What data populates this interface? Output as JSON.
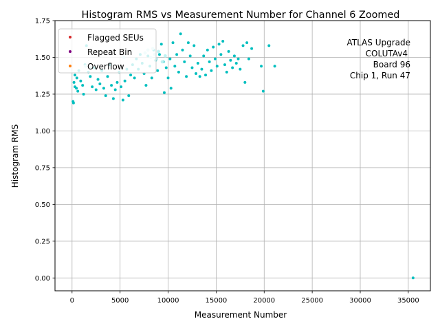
{
  "chart_data": {
    "type": "scatter",
    "title": "Histogram RMS vs Measurement Number for Channel 6 Zoomed",
    "xlabel": "Measurement Number",
    "ylabel": "Histogram RMS",
    "xlim": [
      -1775,
      37300
    ],
    "ylim": [
      -0.0875,
      1.75
    ],
    "xticks": [
      0,
      5000,
      10000,
      15000,
      20000,
      25000,
      30000,
      35000
    ],
    "yticks": [
      0.0,
      0.25,
      0.5,
      0.75,
      1.0,
      1.25,
      1.5,
      1.75
    ],
    "xtick_labels": [
      "0",
      "5000",
      "10000",
      "15000",
      "20000",
      "25000",
      "30000",
      "35000"
    ],
    "ytick_labels": [
      "0.00",
      "0.25",
      "0.50",
      "0.75",
      "1.00",
      "1.25",
      "1.50",
      "1.75"
    ],
    "grid": true,
    "legend_position": "top-left",
    "legend": [
      {
        "label": "Flagged SEUs",
        "color": "#d62728"
      },
      {
        "label": "Repeat Bin",
        "color": "#800080"
      },
      {
        "label": "Overflow",
        "color": "#ff7f0e"
      }
    ],
    "annotation": [
      "ATLAS Upgrade",
      "COLUTAv4",
      "Board 96",
      "Chip 1, Run 47"
    ],
    "series": [
      {
        "name": "Histogram RMS",
        "color": "#00bfbf",
        "points": [
          [
            100,
            1.2
          ],
          [
            150,
            1.19
          ],
          [
            200,
            1.33
          ],
          [
            300,
            1.3
          ],
          [
            450,
            1.29
          ],
          [
            600,
            1.27
          ],
          [
            300,
            1.38
          ],
          [
            500,
            1.36
          ],
          [
            700,
            1.41
          ],
          [
            900,
            1.34
          ],
          [
            1100,
            1.31
          ],
          [
            1200,
            1.25
          ],
          [
            1350,
            1.45
          ],
          [
            1500,
            1.58
          ],
          [
            1700,
            1.4
          ],
          [
            1900,
            1.37
          ],
          [
            2100,
            1.3
          ],
          [
            2300,
            1.43
          ],
          [
            2500,
            1.28
          ],
          [
            2700,
            1.35
          ],
          [
            2900,
            1.32
          ],
          [
            3100,
            1.41
          ],
          [
            3300,
            1.29
          ],
          [
            3500,
            1.24
          ],
          [
            3700,
            1.37
          ],
          [
            3900,
            1.45
          ],
          [
            4100,
            1.31
          ],
          [
            4300,
            1.22
          ],
          [
            4500,
            1.28
          ],
          [
            4700,
            1.33
          ],
          [
            4900,
            1.4
          ],
          [
            5100,
            1.3
          ],
          [
            5300,
            1.21
          ],
          [
            5500,
            1.34
          ],
          [
            5700,
            1.42
          ],
          [
            5900,
            1.24
          ],
          [
            6100,
            1.38
          ],
          [
            6300,
            1.45
          ],
          [
            6500,
            1.36
          ],
          [
            6700,
            1.49
          ],
          [
            6900,
            1.42
          ],
          [
            7100,
            1.52
          ],
          [
            7300,
            1.46
          ],
          [
            7500,
            1.39
          ],
          [
            7700,
            1.31
          ],
          [
            7900,
            1.51
          ],
          [
            8100,
            1.44
          ],
          [
            8300,
            1.36
          ],
          [
            8500,
            1.55
          ],
          [
            8700,
            1.48
          ],
          [
            8900,
            1.41
          ],
          [
            9100,
            1.52
          ],
          [
            9300,
            1.59
          ],
          [
            9500,
            1.47
          ],
          [
            9600,
            1.26
          ],
          [
            9800,
            1.43
          ],
          [
            10000,
            1.36
          ],
          [
            10200,
            1.49
          ],
          [
            10300,
            1.29
          ],
          [
            10500,
            1.6
          ],
          [
            10700,
            1.44
          ],
          [
            10900,
            1.52
          ],
          [
            11100,
            1.4
          ],
          [
            11300,
            1.66
          ],
          [
            11500,
            1.55
          ],
          [
            11700,
            1.47
          ],
          [
            11900,
            1.37
          ],
          [
            12100,
            1.6
          ],
          [
            12300,
            1.51
          ],
          [
            12500,
            1.43
          ],
          [
            12700,
            1.58
          ],
          [
            12900,
            1.39
          ],
          [
            13100,
            1.46
          ],
          [
            13300,
            1.37
          ],
          [
            13500,
            1.42
          ],
          [
            13700,
            1.51
          ],
          [
            13900,
            1.38
          ],
          [
            14100,
            1.55
          ],
          [
            14300,
            1.47
          ],
          [
            14500,
            1.41
          ],
          [
            14700,
            1.57
          ],
          [
            14900,
            1.49
          ],
          [
            15100,
            1.44
          ],
          [
            15300,
            1.59
          ],
          [
            15500,
            1.52
          ],
          [
            15700,
            1.61
          ],
          [
            15900,
            1.45
          ],
          [
            16100,
            1.4
          ],
          [
            16300,
            1.54
          ],
          [
            16500,
            1.48
          ],
          [
            16700,
            1.43
          ],
          [
            16900,
            1.51
          ],
          [
            17100,
            1.46
          ],
          [
            17300,
            1.49
          ],
          [
            17500,
            1.42
          ],
          [
            17800,
            1.58
          ],
          [
            18000,
            1.33
          ],
          [
            18200,
            1.6
          ],
          [
            18400,
            1.49
          ],
          [
            18700,
            1.56
          ],
          [
            19700,
            1.44
          ],
          [
            19900,
            1.27
          ],
          [
            20500,
            1.58
          ],
          [
            21100,
            1.44
          ],
          [
            35500,
            0.0
          ]
        ]
      }
    ],
    "highlight_series": {
      "name": "light-cyan cluster",
      "color": "#bdf1f1",
      "points": [
        [
          1400,
          1.44
        ],
        [
          2000,
          1.43
        ],
        [
          5400,
          1.5
        ],
        [
          7600,
          1.53
        ],
        [
          7900,
          1.55
        ],
        [
          8200,
          1.5
        ],
        [
          8400,
          1.56
        ],
        [
          8600,
          1.52
        ],
        [
          8800,
          1.49
        ],
        [
          9000,
          1.54
        ],
        [
          9400,
          1.47
        ],
        [
          9700,
          1.51
        ]
      ]
    }
  }
}
